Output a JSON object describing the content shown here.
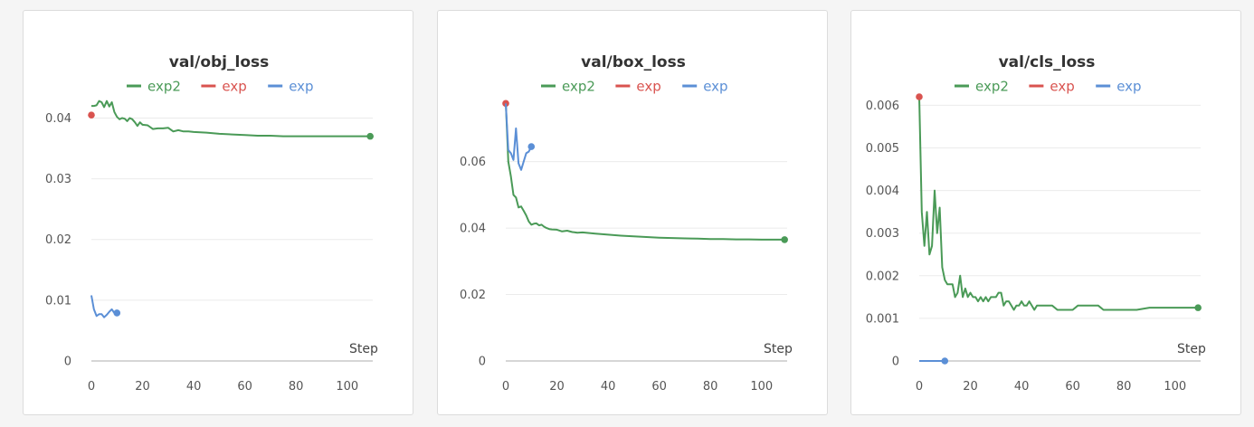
{
  "chart_data": [
    {
      "type": "line",
      "title": "val/obj_loss",
      "xlabel": "Step",
      "ylabel": "",
      "xlim": [
        0,
        110
      ],
      "ylim": [
        0,
        0.0435
      ],
      "xticks": [
        0,
        20,
        40,
        60,
        80,
        100
      ],
      "yticks": [
        0,
        0.01,
        0.02,
        0.03,
        0.04
      ],
      "ytick_labels": [
        "0",
        "0.01",
        "0.02",
        "0.03",
        "0.04"
      ],
      "grid": true,
      "legend": "top",
      "series": [
        {
          "name": "exp2",
          "color": "#4a9a57",
          "x": [
            0,
            1,
            2,
            3,
            4,
            5,
            6,
            7,
            8,
            9,
            10,
            11,
            12,
            13,
            14,
            15,
            16,
            17,
            18,
            19,
            20,
            22,
            24,
            26,
            28,
            30,
            32,
            34,
            36,
            38,
            40,
            45,
            50,
            55,
            60,
            65,
            70,
            75,
            80,
            85,
            90,
            95,
            100,
            105,
            109
          ],
          "y": [
            0.042,
            0.042,
            0.0421,
            0.0428,
            0.0426,
            0.0418,
            0.0428,
            0.0419,
            0.0426,
            0.041,
            0.0402,
            0.0398,
            0.04,
            0.0399,
            0.0395,
            0.04,
            0.0398,
            0.0393,
            0.0387,
            0.0393,
            0.0389,
            0.0388,
            0.0382,
            0.0383,
            0.0383,
            0.0384,
            0.0378,
            0.038,
            0.0378,
            0.0378,
            0.0377,
            0.0376,
            0.0374,
            0.0373,
            0.0372,
            0.0371,
            0.0371,
            0.037,
            0.037,
            0.037,
            0.037,
            0.037,
            0.037,
            0.037,
            0.037
          ],
          "end_marker": true
        },
        {
          "name": "exp",
          "color": "#d9534f",
          "x": [
            0
          ],
          "y": [
            0.0405
          ],
          "end_marker": true
        },
        {
          "name": "exp",
          "color": "#5b8fd6",
          "x": [
            0,
            1,
            2,
            3,
            4,
            5,
            6,
            7,
            8,
            9,
            10
          ],
          "y": [
            0.0108,
            0.0085,
            0.0074,
            0.0077,
            0.0077,
            0.0072,
            0.0076,
            0.0081,
            0.0085,
            0.0079,
            0.0079
          ],
          "end_marker": true
        }
      ]
    },
    {
      "type": "line",
      "title": "val/box_loss",
      "xlabel": "Step",
      "ylabel": "",
      "xlim": [
        0,
        110
      ],
      "ylim": [
        0,
        0.0795
      ],
      "xticks": [
        0,
        20,
        40,
        60,
        80,
        100
      ],
      "yticks": [
        0,
        0.02,
        0.04,
        0.06
      ],
      "ytick_labels": [
        "0",
        "0.02",
        "0.04",
        "0.06"
      ],
      "grid": true,
      "legend": "top",
      "series": [
        {
          "name": "exp2",
          "color": "#4a9a57",
          "x": [
            0,
            1,
            2,
            3,
            4,
            5,
            6,
            7,
            8,
            9,
            10,
            11,
            12,
            13,
            14,
            15,
            16,
            17,
            18,
            20,
            22,
            24,
            26,
            28,
            30,
            35,
            40,
            45,
            50,
            55,
            60,
            65,
            70,
            75,
            80,
            85,
            90,
            95,
            100,
            105,
            109
          ],
          "y": [
            0.078,
            0.06,
            0.0555,
            0.05,
            0.0492,
            0.0462,
            0.0465,
            0.0452,
            0.0438,
            0.042,
            0.041,
            0.0413,
            0.0414,
            0.0408,
            0.041,
            0.0404,
            0.04,
            0.0397,
            0.0396,
            0.0395,
            0.039,
            0.0392,
            0.0388,
            0.0386,
            0.0387,
            0.0383,
            0.038,
            0.0377,
            0.0375,
            0.0373,
            0.0371,
            0.037,
            0.0369,
            0.0368,
            0.0367,
            0.0367,
            0.0366,
            0.0366,
            0.0365,
            0.0365,
            0.0365
          ],
          "end_marker": true
        },
        {
          "name": "exp",
          "color": "#d9534f",
          "x": [
            0
          ],
          "y": [
            0.0775
          ],
          "end_marker": true
        },
        {
          "name": "exp",
          "color": "#5b8fd6",
          "x": [
            0,
            1,
            2,
            3,
            4,
            5,
            6,
            7,
            8,
            9,
            10
          ],
          "y": [
            0.0775,
            0.0635,
            0.0625,
            0.0605,
            0.07,
            0.0595,
            0.0575,
            0.06,
            0.0625,
            0.063,
            0.0645
          ],
          "end_marker": true
        }
      ]
    },
    {
      "type": "line",
      "title": "val/cls_loss",
      "xlabel": "Step",
      "ylabel": "",
      "xlim": [
        0,
        110
      ],
      "ylim": [
        0,
        0.0062
      ],
      "xticks": [
        0,
        20,
        40,
        60,
        80,
        100
      ],
      "yticks": [
        0,
        0.001,
        0.002,
        0.003,
        0.004,
        0.005,
        0.006
      ],
      "ytick_labels": [
        "0",
        "0.001",
        "0.002",
        "0.003",
        "0.004",
        "0.005",
        "0.006"
      ],
      "grid": true,
      "legend": "top",
      "series": [
        {
          "name": "exp2",
          "color": "#4a9a57",
          "x": [
            0,
            1,
            2,
            3,
            4,
            5,
            6,
            7,
            8,
            9,
            10,
            11,
            12,
            13,
            14,
            15,
            16,
            17,
            18,
            19,
            20,
            21,
            22,
            23,
            24,
            25,
            26,
            27,
            28,
            29,
            30,
            31,
            32,
            33,
            34,
            35,
            36,
            37,
            38,
            39,
            40,
            41,
            42,
            43,
            44,
            45,
            46,
            47,
            48,
            49,
            50,
            52,
            54,
            56,
            58,
            60,
            62,
            64,
            66,
            68,
            70,
            72,
            74,
            76,
            78,
            80,
            85,
            90,
            95,
            100,
            105,
            109
          ],
          "y": [
            0.0062,
            0.0035,
            0.0027,
            0.0035,
            0.0025,
            0.0027,
            0.004,
            0.003,
            0.0036,
            0.0022,
            0.0019,
            0.0018,
            0.0018,
            0.0018,
            0.0015,
            0.0016,
            0.002,
            0.0015,
            0.0017,
            0.0015,
            0.0016,
            0.0015,
            0.0015,
            0.0014,
            0.0015,
            0.0014,
            0.0015,
            0.0014,
            0.0015,
            0.0015,
            0.0015,
            0.0016,
            0.0016,
            0.0013,
            0.0014,
            0.0014,
            0.0013,
            0.0012,
            0.0013,
            0.0013,
            0.0014,
            0.0013,
            0.0013,
            0.0014,
            0.0013,
            0.0012,
            0.0013,
            0.0013,
            0.0013,
            0.0013,
            0.0013,
            0.0013,
            0.0012,
            0.0012,
            0.0012,
            0.0012,
            0.0013,
            0.0013,
            0.0013,
            0.0013,
            0.0013,
            0.0012,
            0.0012,
            0.0012,
            0.0012,
            0.0012,
            0.0012,
            0.00125,
            0.00125,
            0.00125,
            0.00125,
            0.00125
          ],
          "end_marker": true
        },
        {
          "name": "exp",
          "color": "#d9534f",
          "x": [
            0
          ],
          "y": [
            0.0062
          ],
          "end_marker": true
        },
        {
          "name": "exp",
          "color": "#5b8fd6",
          "x": [
            0,
            2,
            4,
            6,
            8,
            10
          ],
          "y": [
            0,
            0,
            0,
            0,
            0,
            0
          ],
          "end_marker": true
        }
      ]
    }
  ]
}
